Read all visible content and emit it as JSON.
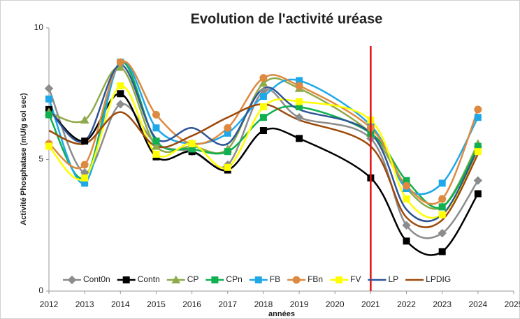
{
  "chart_data": {
    "type": "line",
    "title": "Evolution de l'activité uréase",
    "x_label": "années",
    "y_label": "Activité Phosphatase (mU/g sol sec)",
    "xlim": [
      2012,
      2025
    ],
    "xticks": [
      2012,
      2013,
      2014,
      2015,
      2016,
      2017,
      2018,
      2019,
      2020,
      2021,
      2022,
      2023,
      2024,
      2025
    ],
    "ylim": [
      0,
      10
    ],
    "yticks": [
      0,
      5,
      10
    ],
    "vline": {
      "x": 2021,
      "color": "#e01010"
    },
    "legend": "bottom",
    "x": [
      2012,
      2013,
      2014,
      2015,
      2016,
      2017,
      2018,
      2019,
      2021,
      2022,
      2023,
      2024
    ],
    "series": [
      {
        "name": "Cont0n",
        "color": "#8c8c8c",
        "marker": "diamond",
        "values": [
          7.7,
          4.5,
          7.1,
          5.6,
          5.3,
          4.8,
          7.6,
          6.6,
          5.8,
          2.5,
          2.2,
          4.2
        ]
      },
      {
        "name": "Contn",
        "color": "#000000",
        "marker": "square",
        "values": [
          6.9,
          5.7,
          7.5,
          5.1,
          5.3,
          4.6,
          6.1,
          5.8,
          4.3,
          1.9,
          1.5,
          3.7
        ]
      },
      {
        "name": "CP",
        "color": "#8faa4a",
        "marker": "triangle",
        "values": [
          6.8,
          6.5,
          8.5,
          5.5,
          5.5,
          5.4,
          7.9,
          7.7,
          6.0,
          3.9,
          3.2,
          5.6
        ]
      },
      {
        "name": "CPn",
        "color": "#10b050",
        "marker": "square",
        "values": [
          6.7,
          4.3,
          8.7,
          5.7,
          5.4,
          5.3,
          6.6,
          7.0,
          6.0,
          4.2,
          3.2,
          5.5
        ]
      },
      {
        "name": "FB",
        "color": "#1fa8e8",
        "marker": "square",
        "values": [
          7.3,
          4.1,
          8.7,
          6.2,
          5.6,
          6.0,
          7.4,
          8.0,
          6.3,
          3.9,
          4.1,
          6.6
        ]
      },
      {
        "name": "FBn",
        "color": "#dd8a40",
        "marker": "circle",
        "values": [
          5.6,
          4.8,
          8.7,
          6.7,
          5.6,
          6.2,
          8.1,
          7.8,
          6.2,
          4.0,
          3.5,
          6.9
        ]
      },
      {
        "name": "FV",
        "color": "#ffff00",
        "marker": "square",
        "values": [
          5.5,
          4.3,
          7.8,
          5.2,
          5.6,
          4.7,
          7.0,
          7.2,
          6.5,
          3.5,
          2.9,
          5.3
        ]
      },
      {
        "name": "LP",
        "color": "#2f5597",
        "marker": "none",
        "values": [
          6.9,
          5.7,
          8.6,
          5.8,
          6.2,
          5.6,
          7.7,
          6.9,
          6.0,
          3.1,
          2.9,
          5.4
        ]
      },
      {
        "name": "LPDIG",
        "color": "#9c4a0c",
        "marker": "none",
        "values": [
          6.1,
          5.6,
          6.8,
          5.5,
          5.9,
          6.6,
          7.1,
          6.5,
          5.5,
          2.8,
          2.7,
          5.2
        ]
      }
    ]
  }
}
